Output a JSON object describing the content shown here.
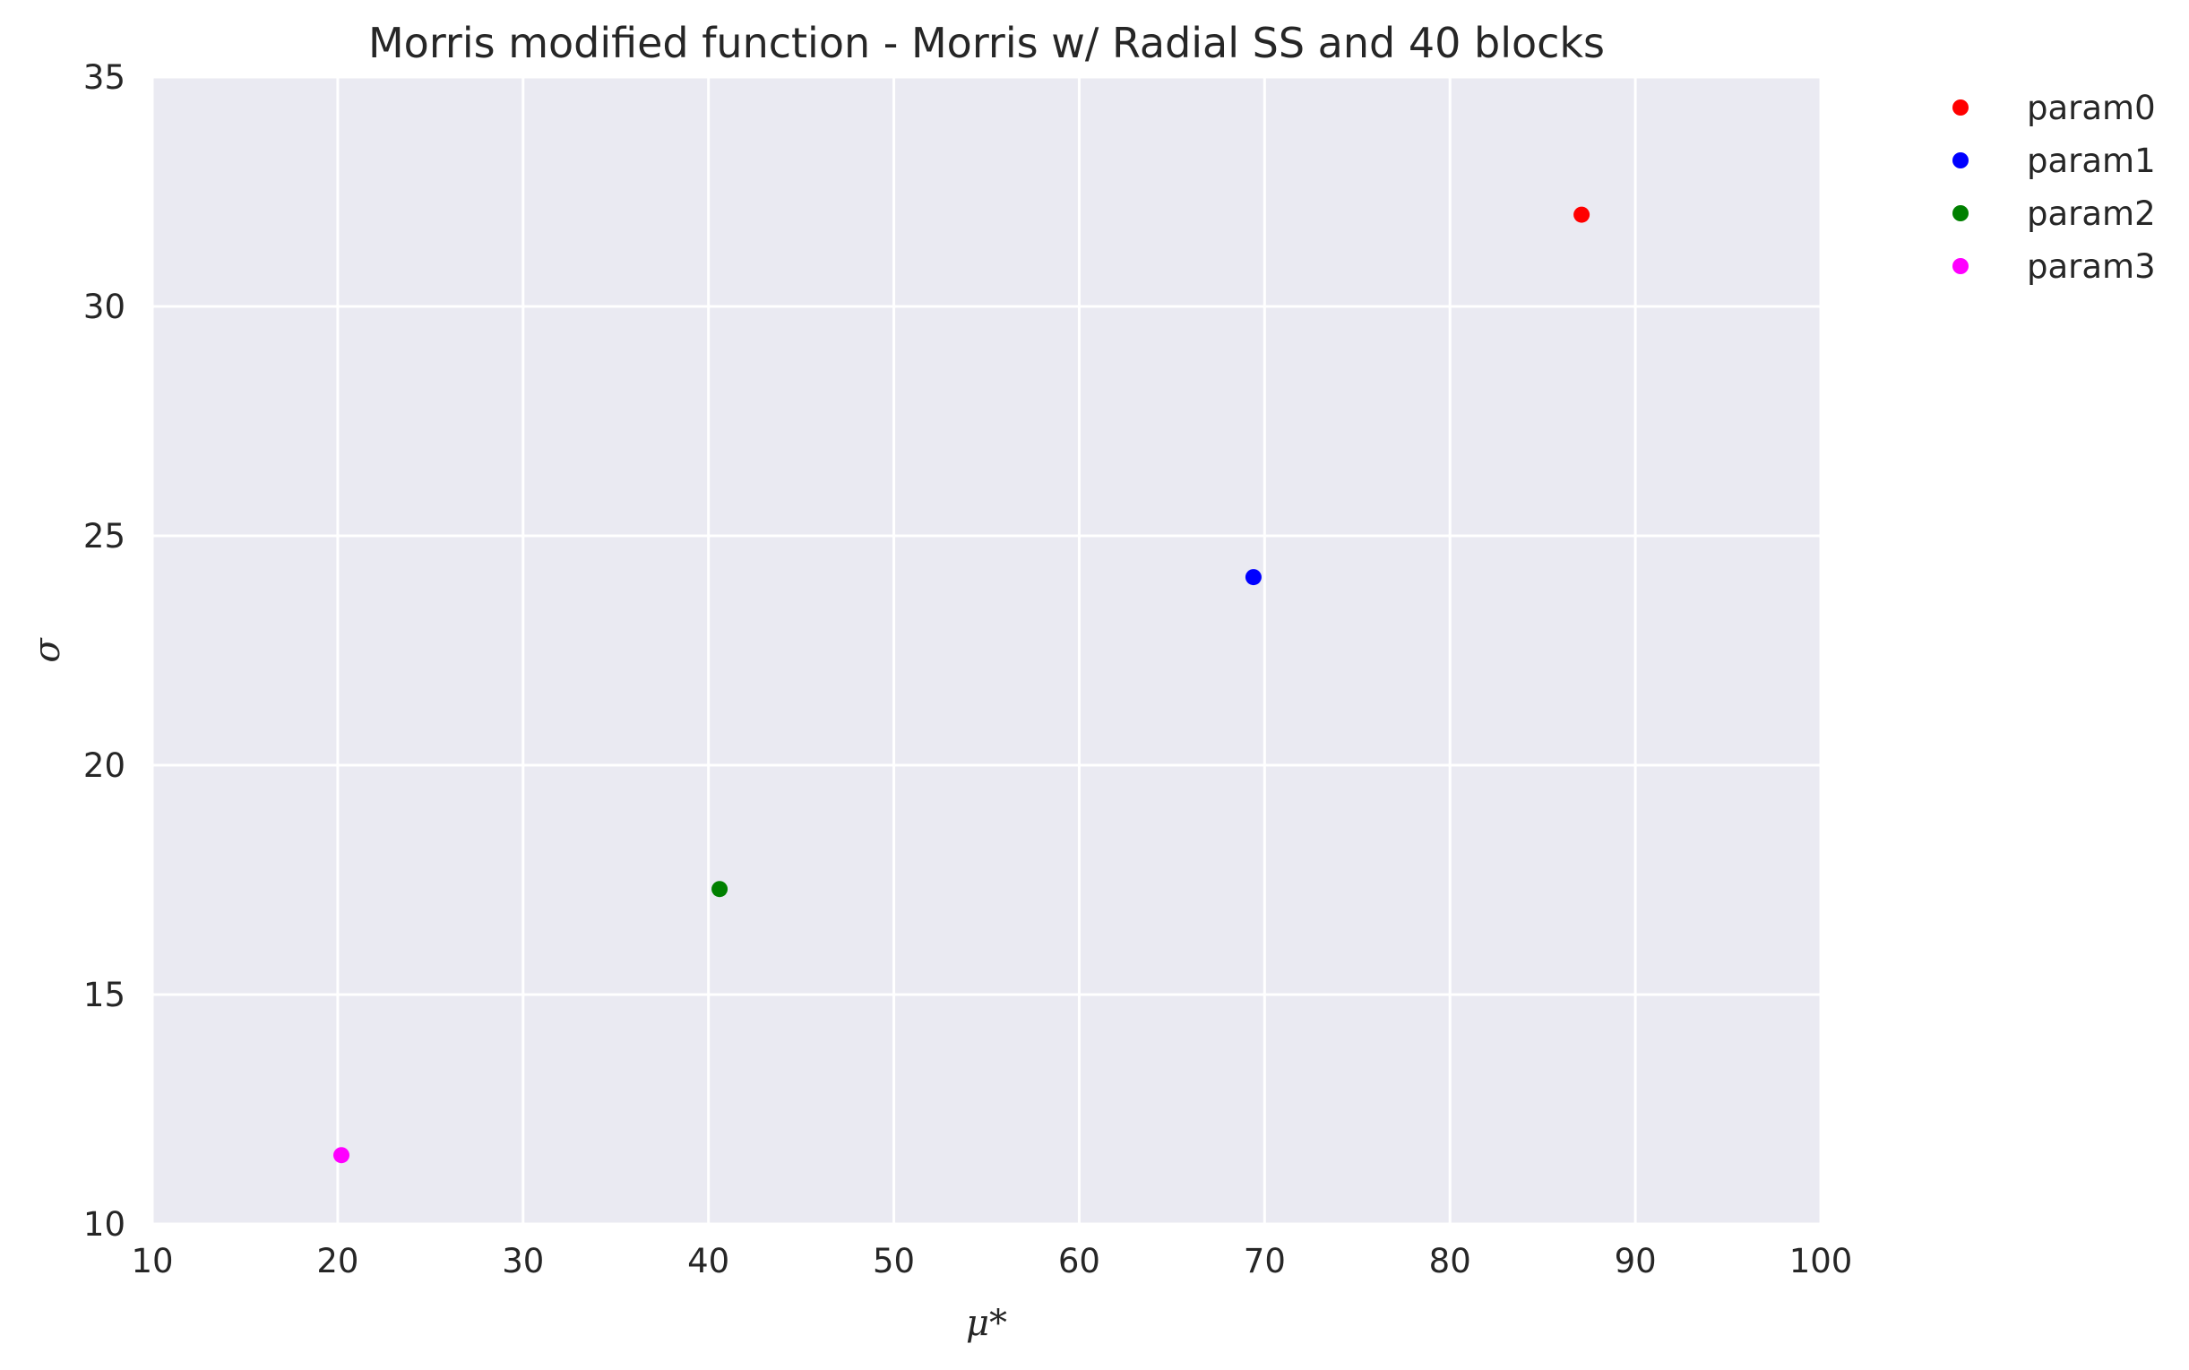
{
  "chart_data": {
    "type": "scatter",
    "title": "Morris modified function - Morris w/ Radial SS and 40 blocks",
    "xlabel": "μ*",
    "ylabel": "σ",
    "xlim": [
      10,
      100
    ],
    "ylim": [
      10,
      35
    ],
    "xticks": [
      "10",
      "20",
      "30",
      "40",
      "50",
      "60",
      "70",
      "80",
      "90",
      "100"
    ],
    "yticks": [
      "10",
      "15",
      "20",
      "25",
      "30",
      "35"
    ],
    "grid": true,
    "legend_position": "outside-top-right",
    "background_color": "#eaeaf2",
    "grid_color": "#ffffff",
    "series": [
      {
        "name": "param0",
        "color": "#ff0000",
        "x": [
          87.1
        ],
        "y": [
          32.0
        ]
      },
      {
        "name": "param1",
        "color": "#0000ff",
        "x": [
          69.4
        ],
        "y": [
          24.1
        ]
      },
      {
        "name": "param2",
        "color": "#008000",
        "x": [
          40.6
        ],
        "y": [
          17.3
        ]
      },
      {
        "name": "param3",
        "color": "#ff00ff",
        "x": [
          20.2
        ],
        "y": [
          11.5
        ]
      }
    ]
  }
}
